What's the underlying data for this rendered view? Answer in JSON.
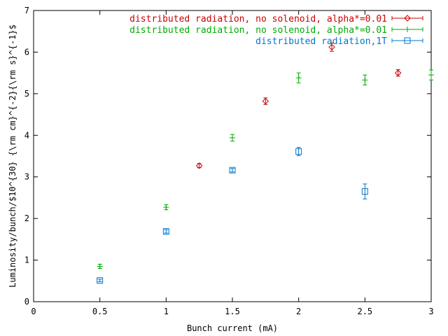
{
  "chart_data": {
    "type": "scatter",
    "title": "",
    "xlabel": "Bunch current (mA)",
    "ylabel": "Luminosity/bunch/$10^{30} {\\rm cm}^{-2}{\\rm s}^{-1}$",
    "xlim": [
      0,
      3
    ],
    "ylim": [
      0,
      7
    ],
    "xticks": [
      "0",
      "0.5",
      "1",
      "1.5",
      "2",
      "2.5",
      "3"
    ],
    "yticks": [
      "0",
      "1",
      "2",
      "3",
      "4",
      "5",
      "6",
      "7"
    ],
    "grid": false,
    "legend_position": "top-right",
    "series": [
      {
        "name": "distributed radiation, no solenoid, alpha*=0.01",
        "color": "#cc0000",
        "marker": "diamond",
        "points": [
          {
            "x": 1.25,
            "y": 3.27,
            "err": 0.05
          },
          {
            "x": 1.75,
            "y": 4.82,
            "err": 0.08
          },
          {
            "x": 2.25,
            "y": 6.12,
            "err": 0.1
          },
          {
            "x": 2.75,
            "y": 5.5,
            "err": 0.08
          }
        ]
      },
      {
        "name": "distributed radiation, no solenoid, alpha*=0.01",
        "color": "#00aa00",
        "marker": "plus",
        "points": [
          {
            "x": 0.5,
            "y": 0.85,
            "err": 0.05
          },
          {
            "x": 1.0,
            "y": 2.27,
            "err": 0.06
          },
          {
            "x": 1.5,
            "y": 3.94,
            "err": 0.08
          },
          {
            "x": 2.0,
            "y": 5.38,
            "err": 0.12
          },
          {
            "x": 2.5,
            "y": 5.33,
            "err": 0.12
          },
          {
            "x": 3.0,
            "y": 5.45,
            "err": 0.12
          }
        ]
      },
      {
        "name": "distributed radiation,1T",
        "color": "#0077cc",
        "marker": "square",
        "points": [
          {
            "x": 0.5,
            "y": 0.51,
            "err": 0.03
          },
          {
            "x": 1.0,
            "y": 1.69,
            "err": 0.04
          },
          {
            "x": 1.5,
            "y": 3.16,
            "err": 0.04
          },
          {
            "x": 2.0,
            "y": 3.61,
            "err": 0.1
          },
          {
            "x": 2.5,
            "y": 2.65,
            "err": 0.18
          }
        ]
      }
    ]
  }
}
